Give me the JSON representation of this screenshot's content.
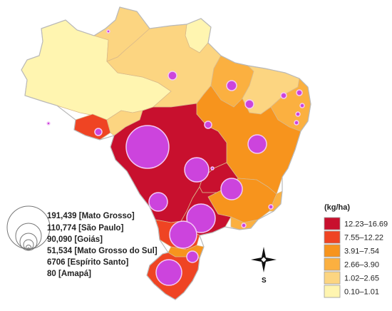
{
  "colors": {
    "c1": "#c8102e",
    "c2": "#ef4423",
    "c3": "#f7941d",
    "c4": "#fbb040",
    "c5": "#fcd581",
    "c6": "#fff5b0",
    "bubble": "#cc44dd"
  },
  "regions": [
    {
      "name": "north-west",
      "color_class": "c6"
    },
    {
      "name": "roraima",
      "color_class": "c5"
    },
    {
      "name": "amapa",
      "color_class": "c6"
    },
    {
      "name": "para",
      "color_class": "c5"
    },
    {
      "name": "maranhao",
      "color_class": "c4"
    },
    {
      "name": "piaui-ceara",
      "color_class": "c5"
    },
    {
      "name": "northeast-coast",
      "color_class": "c4"
    },
    {
      "name": "tocantins-bahia",
      "color_class": "c3"
    },
    {
      "name": "acre",
      "color_class": "c2"
    },
    {
      "name": "rondonia",
      "color_class": "c5"
    },
    {
      "name": "mato-grosso",
      "color_class": "c1"
    },
    {
      "name": "goias",
      "color_class": "c1"
    },
    {
      "name": "minas-gerais",
      "color_class": "c3"
    },
    {
      "name": "espirito-santo",
      "color_class": "c4"
    },
    {
      "name": "sao-paulo",
      "color_class": "c1"
    },
    {
      "name": "rio-de-janeiro",
      "color_class": "c4"
    },
    {
      "name": "parana",
      "color_class": "c2"
    },
    {
      "name": "santa-catarina",
      "color_class": "c3"
    },
    {
      "name": "rio-grande-do-sul",
      "color_class": "c2"
    }
  ],
  "size_legend": {
    "items": [
      {
        "value": "191,439",
        "state": "[Mato Grosso]"
      },
      {
        "value": "110,774",
        "state": "[São Paulo]"
      },
      {
        "value": "90,090",
        "state": "[Goiás]"
      },
      {
        "value": "51,534",
        "state": "[Mato Grosso do Sul]"
      },
      {
        "value": "6706",
        "state": "[Espírito Santo]"
      },
      {
        "value": "80",
        "state": "[Amapá]"
      }
    ]
  },
  "color_legend": {
    "title": "(kg/ha)",
    "items": [
      {
        "label": "12.23–16.69",
        "color_class": "c1"
      },
      {
        "label": "7.55–12.22",
        "color_class": "c2"
      },
      {
        "label": "3.91–7.54",
        "color_class": "c3"
      },
      {
        "label": "2.66–3.90",
        "color_class": "c4"
      },
      {
        "label": "1.02–2.65",
        "color_class": "c5"
      },
      {
        "label": "0.10–1.01",
        "color_class": "c6"
      }
    ]
  },
  "compass": {
    "label": "S",
    "icon": "compass-rose-icon"
  }
}
